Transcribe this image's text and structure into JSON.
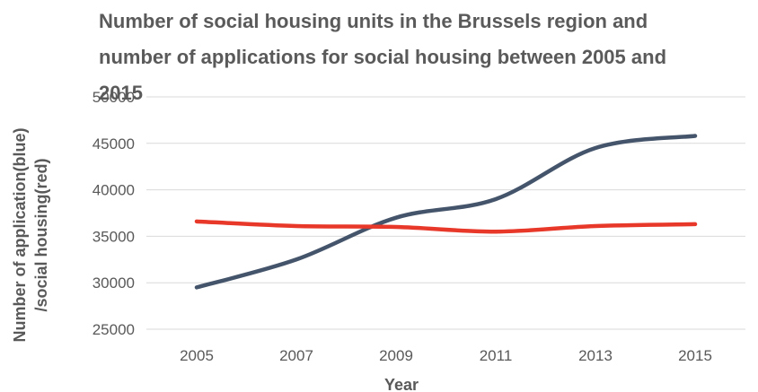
{
  "chart_data": {
    "type": "line",
    "title_lines": [
      "Number of social housing units in the Brussels region and",
      "number of applications for social housing between 2005 and",
      "2015"
    ],
    "xlabel": "Year",
    "ylabel_lines": [
      "Number of application(blue)",
      "/social housing(red)"
    ],
    "x": [
      2005,
      2007,
      2009,
      2011,
      2013,
      2015
    ],
    "ylim": [
      25000,
      50000
    ],
    "yticks": [
      25000,
      30000,
      35000,
      40000,
      45000,
      50000
    ],
    "grid": true,
    "legend": "none",
    "series": [
      {
        "color": "#44546a",
        "values": [
          29500,
          32500,
          37000,
          39000,
          44500,
          45800
        ]
      },
      {
        "color": "#e8382a",
        "values": [
          36600,
          36100,
          36000,
          35500,
          36100,
          36300
        ]
      }
    ],
    "colors": {
      "grid": "#d9d9d9",
      "text": "#595959",
      "title": "#5a5a5a"
    }
  }
}
